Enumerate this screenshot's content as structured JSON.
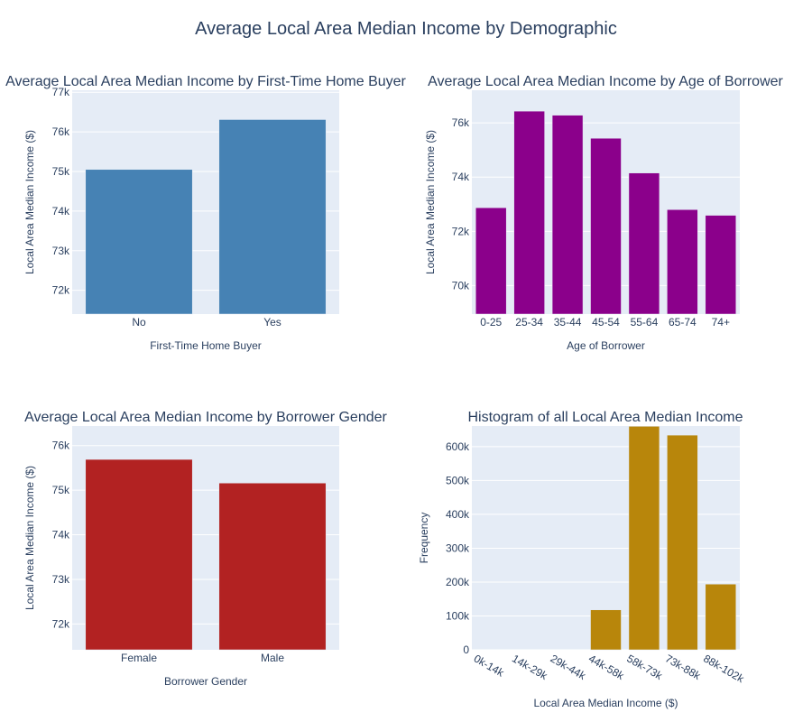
{
  "title": "Average Local Area Median Income by Demographic",
  "chart_data": [
    {
      "type": "bar",
      "title": "Average Local Area Median Income by First-Time Home Buyer",
      "xlabel": "First-Time Home Buyer",
      "ylabel": "Local Area Median Income ($)",
      "categories": [
        "No",
        "Yes"
      ],
      "values": [
        75050,
        76310
      ],
      "ylim": [
        71400,
        77050
      ],
      "yticks": [
        72000,
        73000,
        74000,
        75000,
        76000,
        77000
      ],
      "ytick_labels": [
        "72k",
        "73k",
        "74k",
        "75k",
        "76k",
        "77k"
      ],
      "color": "#4682b4",
      "grid": true
    },
    {
      "type": "bar",
      "title": "Average Local Area Median Income by Age of Borrower",
      "xlabel": "Age of Borrower",
      "ylabel": "Local Area Median Income ($)",
      "categories": [
        "0-25",
        "25-34",
        "35-44",
        "45-54",
        "55-64",
        "65-74",
        "74+"
      ],
      "values": [
        72870,
        76430,
        76280,
        75430,
        74150,
        72800,
        72590
      ],
      "ylim": [
        68950,
        77200
      ],
      "yticks": [
        70000,
        72000,
        74000,
        76000
      ],
      "ytick_labels": [
        "70k",
        "72k",
        "74k",
        "76k"
      ],
      "color": "#8b008b",
      "grid": true
    },
    {
      "type": "bar",
      "title": "Average Local Area Median Income by Borrower Gender",
      "xlabel": "Borrower Gender",
      "ylabel": "Local Area Median Income ($)",
      "categories": [
        "Female",
        "Male"
      ],
      "values": [
        75690,
        75160
      ],
      "ylim": [
        71420,
        76440
      ],
      "yticks": [
        72000,
        73000,
        74000,
        75000,
        76000
      ],
      "ytick_labels": [
        "72k",
        "73k",
        "74k",
        "75k",
        "76k"
      ],
      "color": "#b22222",
      "grid": true
    },
    {
      "type": "bar",
      "title": "Histogram of all Local Area Median Income",
      "xlabel": "Local Area Median Income ($)",
      "ylabel": "Frequency",
      "categories": [
        "0k-14k",
        "14k-29k",
        "29k-44k",
        "44k-58k",
        "58k-73k",
        "73k-88k",
        "88k-102k"
      ],
      "values": [
        0,
        0,
        0,
        118000,
        660000,
        634000,
        194000
      ],
      "ylim": [
        0,
        661000
      ],
      "yticks": [
        0,
        100000,
        200000,
        300000,
        400000,
        500000,
        600000
      ],
      "ytick_labels": [
        "0",
        "100k",
        "200k",
        "300k",
        "400k",
        "500k",
        "600k"
      ],
      "color": "#b8860b",
      "grid": true,
      "xtick_rotation": "slanted"
    }
  ]
}
